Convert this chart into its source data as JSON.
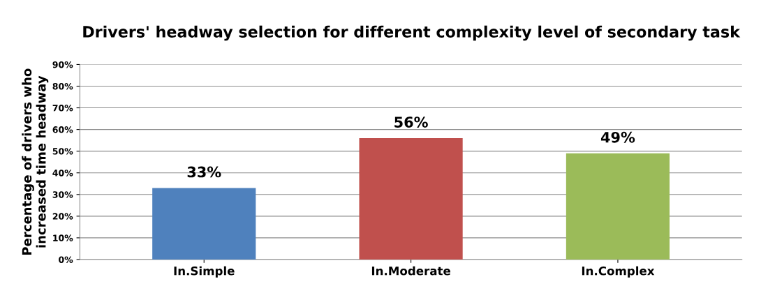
{
  "chart_data": {
    "type": "bar",
    "title": "Drivers' headway selection for different complexity level of secondary task",
    "ylabel": "Percentage of drivers who\nincreased time headway",
    "categories": [
      "In.Simple",
      "In.Moderate",
      "In.Complex"
    ],
    "values": [
      33,
      56,
      49
    ],
    "colors": [
      "#4f81bd",
      "#c0504d",
      "#9bbb59"
    ],
    "value_labels": [
      "33%",
      "56%",
      "49%"
    ],
    "ylim": [
      0,
      90
    ],
    "yticks": [
      {
        "value": 0,
        "label": "0%"
      },
      {
        "value": 10,
        "label": "10%"
      },
      {
        "value": 20,
        "label": "20%"
      },
      {
        "value": 30,
        "label": "30%"
      },
      {
        "value": 40,
        "label": "40%"
      },
      {
        "value": 50,
        "label": "50%"
      },
      {
        "value": 60,
        "label": "60%"
      },
      {
        "value": 70,
        "label": "70%"
      },
      {
        "value": 80,
        "label": "80%"
      },
      {
        "value": 90,
        "label": "90%"
      }
    ],
    "grid": "y",
    "legend": false
  }
}
